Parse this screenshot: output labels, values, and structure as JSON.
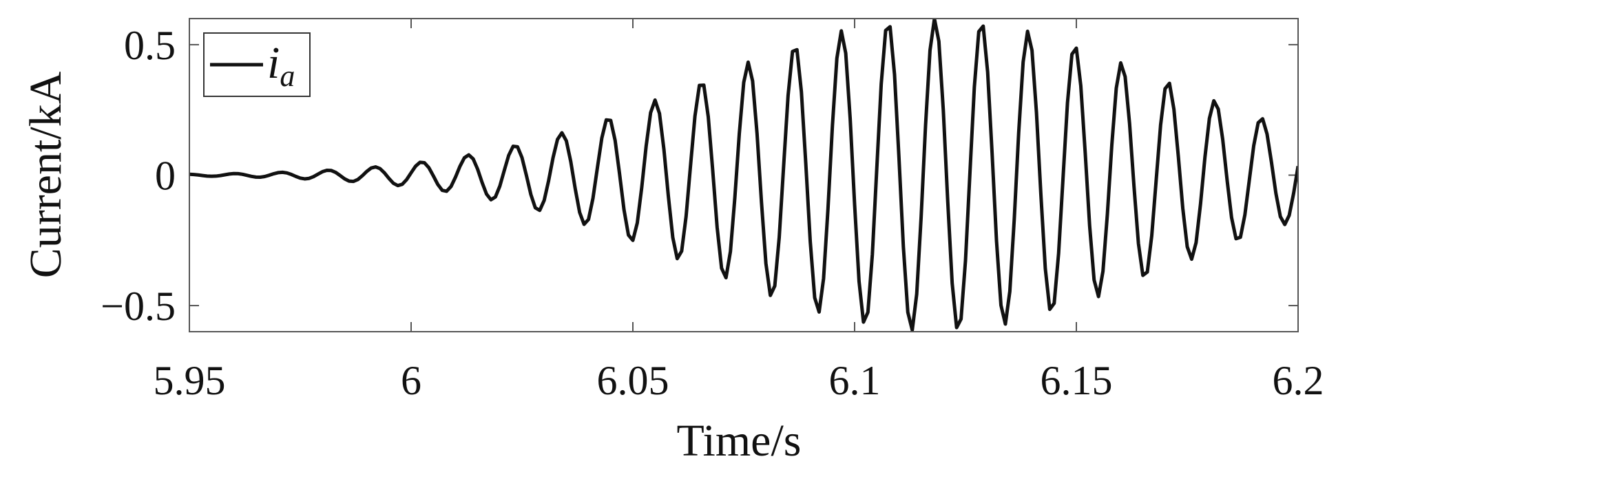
{
  "chart_data": {
    "type": "line",
    "xlabel": "Time/s",
    "ylabel": "Current/kA",
    "xlim": [
      5.95,
      6.2
    ],
    "ylim": [
      -0.6,
      0.6
    ],
    "xticks": [
      5.95,
      6.0,
      6.05,
      6.1,
      6.15,
      6.2
    ],
    "xtick_labels": [
      "5.95",
      "6",
      "6.05",
      "6.1",
      "6.15",
      "6.2"
    ],
    "yticks": [
      -0.5,
      0,
      0.5
    ],
    "ytick_labels": [
      "−0.5",
      "0",
      "0.5"
    ],
    "grid": false,
    "legend": {
      "position": "top-left"
    },
    "series": [
      {
        "name": "i_a",
        "legend_main": "i",
        "legend_sub": "a",
        "color": "#111111",
        "signal": {
          "frequency_hz": 95,
          "phase_rad": 0.2,
          "peak_time_s": 6.118,
          "peak_amplitude_kA": 0.6,
          "envelope_sigma_s": 0.052,
          "t_start_s": 5.95,
          "t_end_s": 6.2,
          "sample_step_s": 0.001
        }
      }
    ]
  }
}
